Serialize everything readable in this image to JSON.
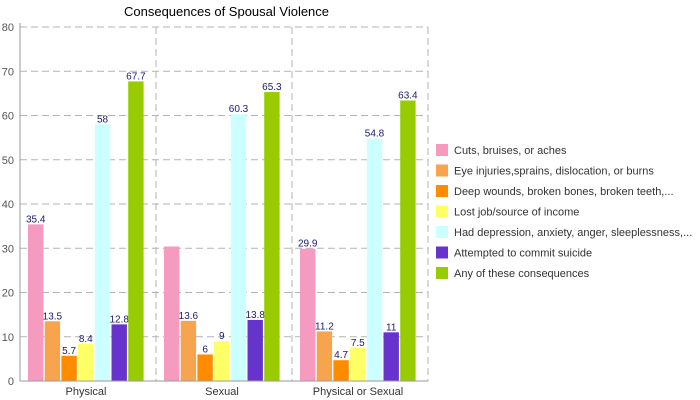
{
  "chart_data": {
    "type": "bar",
    "title": "Consequences of Spousal  Violence",
    "xlabel": "",
    "ylabel": "",
    "ylim": [
      0,
      80
    ],
    "yticks": [
      0,
      10,
      20,
      30,
      40,
      50,
      60,
      70,
      80
    ],
    "grid": true,
    "legend_position": "right",
    "categories": [
      "Physical",
      "Sexual",
      "Physical or Sexual"
    ],
    "series": [
      {
        "name": "Cuts, bruises, or aches",
        "color": "#f59bc0",
        "values": [
          35.4,
          30.4,
          29.9
        ],
        "labels": [
          "35.4",
          "",
          "29.9"
        ]
      },
      {
        "name": "Eye injuries,sprains, dislocation, or burns",
        "color": "#f7a44f",
        "values": [
          13.5,
          13.6,
          11.2
        ],
        "labels": [
          "13.5",
          "13.6",
          "11.2"
        ]
      },
      {
        "name": "Deep wounds, broken bones, broken teeth,...",
        "color": "#ff8c00",
        "values": [
          5.7,
          6,
          4.7
        ],
        "labels": [
          "5.7",
          "6",
          "4.7"
        ]
      },
      {
        "name": "Lost job/source of income",
        "color": "#ffff66",
        "values": [
          8.4,
          9,
          7.5
        ],
        "labels": [
          "8.4",
          "9",
          "7.5"
        ]
      },
      {
        "name": "Had depression, anxiety, anger, sleeplessness,...",
        "color": "#ccffff",
        "values": [
          58,
          60.3,
          54.8
        ],
        "labels": [
          "58",
          "60.3",
          "54.8"
        ]
      },
      {
        "name": "Attempted to commit suicide",
        "color": "#6633cc",
        "values": [
          12.8,
          13.8,
          11
        ],
        "labels": [
          "12.8",
          "13.8",
          "11"
        ]
      },
      {
        "name": "Any of these consequences",
        "color": "#99cc00",
        "values": [
          67.7,
          65.3,
          63.4
        ],
        "labels": [
          "67.7",
          "65.3",
          "63.4"
        ]
      }
    ]
  }
}
